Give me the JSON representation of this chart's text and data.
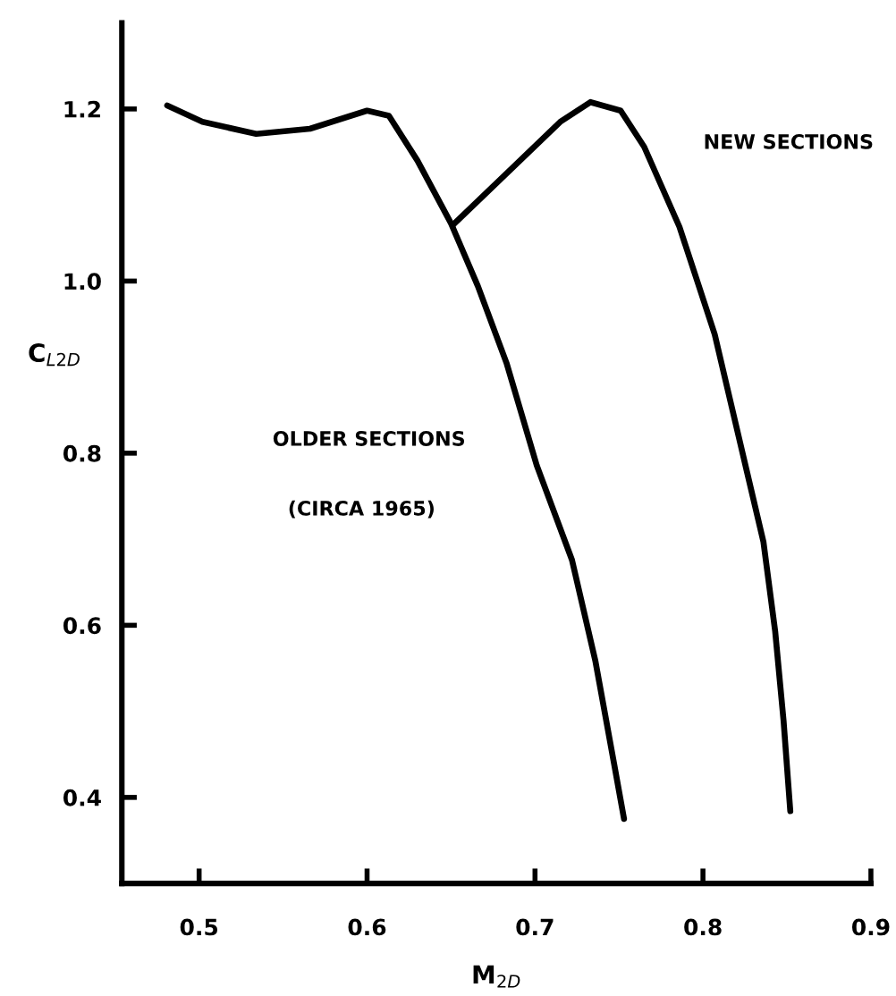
{
  "chart_data": {
    "type": "line",
    "xlabel": "M$_{2D}$",
    "ylabel": "C$_{L2D}$",
    "series": [
      {
        "color": "#000000",
        "x": [
          0.481,
          0.502,
          0.534,
          0.566,
          0.6,
          0.613,
          0.63,
          0.65,
          0.666,
          0.683,
          0.701,
          0.722,
          0.736,
          0.747,
          0.753
        ],
        "values": [
          1.204,
          1.185,
          1.171,
          1.177,
          1.198,
          1.192,
          1.14,
          1.067,
          0.994,
          0.905,
          0.786,
          0.676,
          0.558,
          0.44,
          0.375
        ]
      },
      {
        "color": "#000000",
        "x": [
          0.651,
          0.683,
          0.715,
          0.733,
          0.751,
          0.765,
          0.786,
          0.807,
          0.826,
          0.836,
          0.843,
          0.848,
          0.852
        ],
        "values": [
          1.065,
          1.125,
          1.185,
          1.208,
          1.198,
          1.156,
          1.063,
          0.938,
          0.78,
          0.697,
          0.593,
          0.489,
          0.384
        ]
      }
    ],
    "annotations": [
      "NEW SECTIONS",
      "OLDER SECTIONS",
      "(CIRCA 1965)"
    ],
    "xlim": [
      0.454,
      0.9
    ],
    "ylim": [
      0.3,
      1.3
    ],
    "xticks": [
      0.5,
      0.6,
      0.7,
      0.8,
      0.9
    ],
    "yticks": [
      0.4,
      0.6,
      0.8,
      {
        "value": 1.0,
        "label": "1.0"
      },
      1.2
    ],
    "grid": false,
    "marker": "none",
    "line_style": "solid"
  }
}
